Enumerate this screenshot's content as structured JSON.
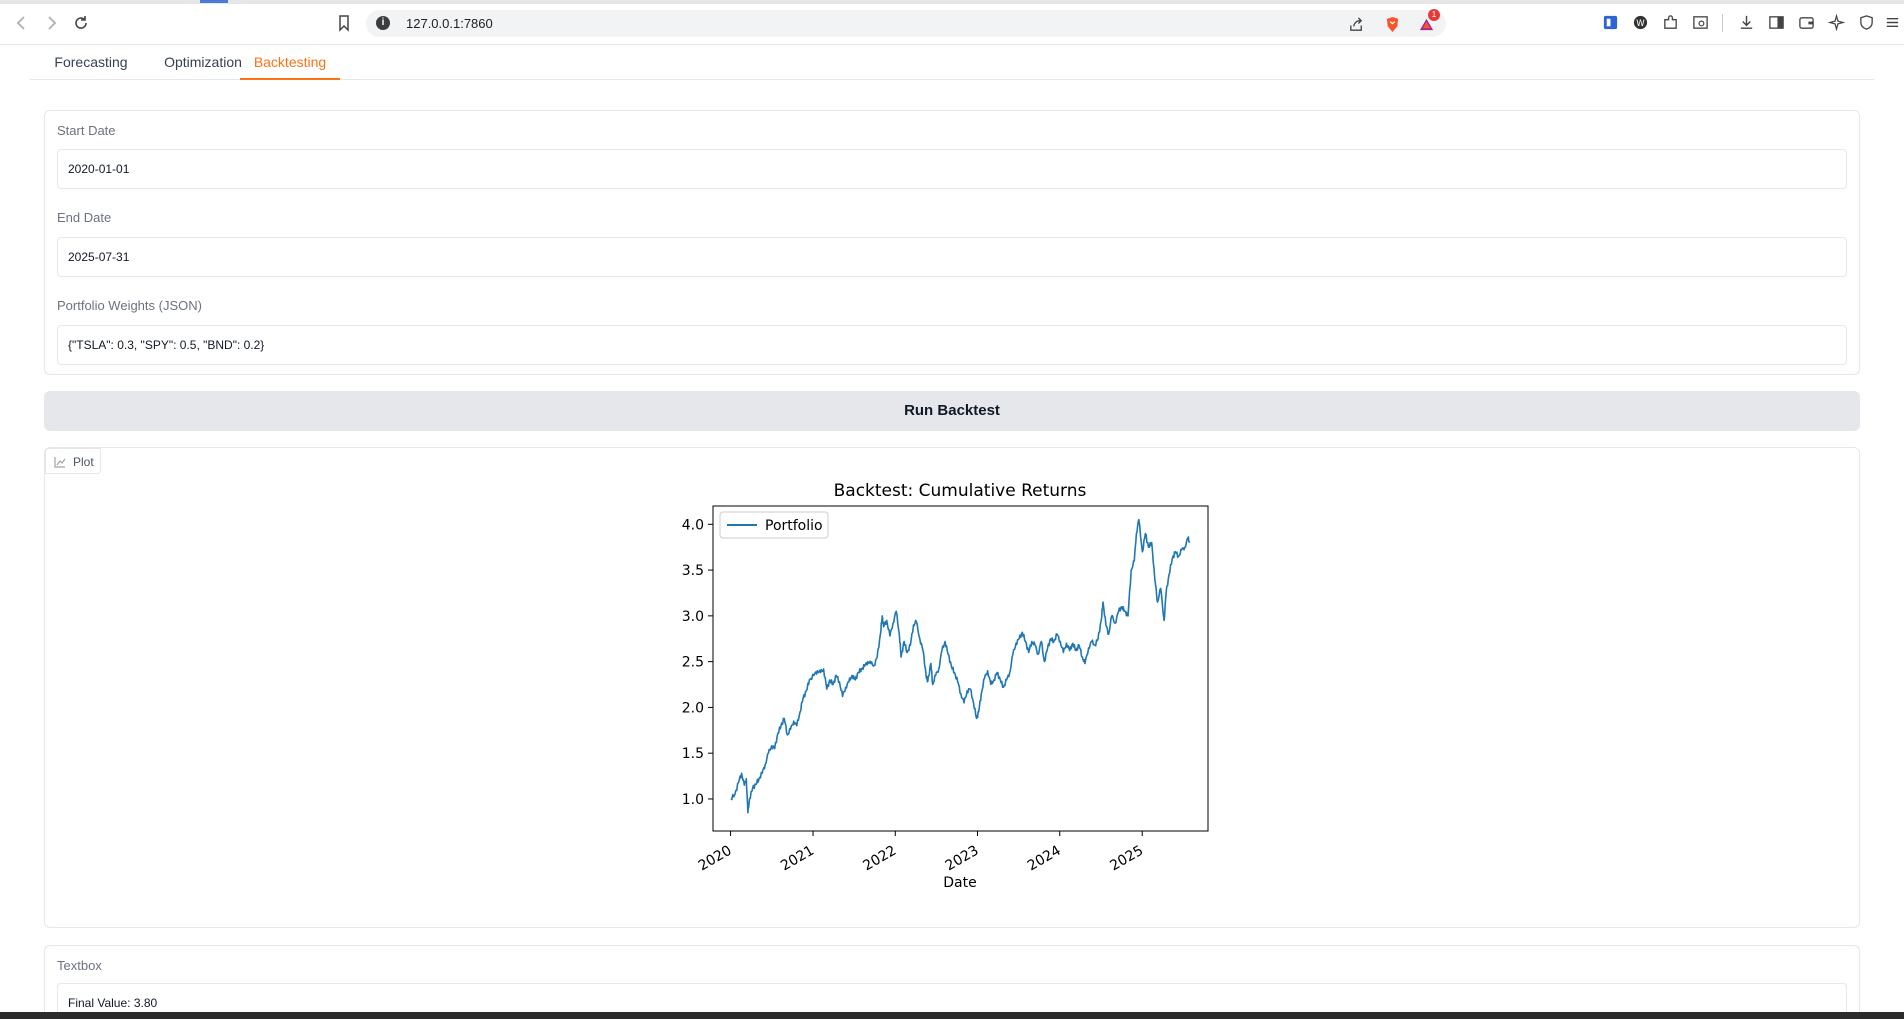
{
  "browser": {
    "url": "127.0.0.1:7860",
    "notification_count": "1"
  },
  "tabs": [
    {
      "label": "Forecasting",
      "active": false
    },
    {
      "label": "Optimization",
      "active": false
    },
    {
      "label": "Backtesting",
      "active": true
    }
  ],
  "form": {
    "start_date": {
      "label": "Start Date",
      "value": "2020-01-01"
    },
    "end_date": {
      "label": "End Date",
      "value": "2025-07-31"
    },
    "weights": {
      "label": "Portfolio Weights (JSON)",
      "value": "{\"TSLA\": 0.3, \"SPY\": 0.5, \"BND\": 0.2}"
    }
  },
  "run_button": {
    "label": "Run Backtest"
  },
  "plot": {
    "badge_label": "Plot"
  },
  "textbox": {
    "label": "Textbox",
    "value": "Final Value: 3.80"
  },
  "colors": {
    "accent": "#f97316",
    "line": "#1f77b4"
  },
  "chart_data": {
    "type": "line",
    "title": "Backtest: Cumulative Returns",
    "xlabel": "Date",
    "ylabel": "",
    "xlim": [
      "2019-10-15",
      "2025-10-20"
    ],
    "ylim": [
      0.65,
      4.2
    ],
    "x_ticks": [
      "2020",
      "2021",
      "2022",
      "2023",
      "2024",
      "2025"
    ],
    "y_ticks": [
      "1.0",
      "1.5",
      "2.0",
      "2.5",
      "3.0",
      "3.5",
      "4.0"
    ],
    "legend": "upper-left",
    "grid": false,
    "series": [
      {
        "name": "Portfolio",
        "color": "#1f77b4",
        "points": [
          [
            "2020-01-02",
            1.0
          ],
          [
            "2020-01-20",
            1.05
          ],
          [
            "2020-02-05",
            1.18
          ],
          [
            "2020-02-19",
            1.28
          ],
          [
            "2020-03-02",
            1.15
          ],
          [
            "2020-03-11",
            1.22
          ],
          [
            "2020-03-18",
            0.85
          ],
          [
            "2020-03-25",
            1.0
          ],
          [
            "2020-04-08",
            1.12
          ],
          [
            "2020-04-22",
            1.16
          ],
          [
            "2020-05-06",
            1.22
          ],
          [
            "2020-05-20",
            1.28
          ],
          [
            "2020-06-03",
            1.38
          ],
          [
            "2020-06-17",
            1.5
          ],
          [
            "2020-07-01",
            1.58
          ],
          [
            "2020-07-15",
            1.55
          ],
          [
            "2020-07-29",
            1.72
          ],
          [
            "2020-08-12",
            1.8
          ],
          [
            "2020-08-26",
            1.88
          ],
          [
            "2020-09-09",
            1.7
          ],
          [
            "2020-09-23",
            1.76
          ],
          [
            "2020-10-07",
            1.85
          ],
          [
            "2020-10-21",
            1.8
          ],
          [
            "2020-11-04",
            1.95
          ],
          [
            "2020-11-18",
            2.1
          ],
          [
            "2020-12-02",
            2.18
          ],
          [
            "2020-12-16",
            2.3
          ],
          [
            "2021-01-05",
            2.35
          ],
          [
            "2021-01-20",
            2.4
          ],
          [
            "2021-02-03",
            2.38
          ],
          [
            "2021-02-17",
            2.42
          ],
          [
            "2021-03-03",
            2.2
          ],
          [
            "2021-03-17",
            2.3
          ],
          [
            "2021-03-31",
            2.25
          ],
          [
            "2021-04-14",
            2.35
          ],
          [
            "2021-04-28",
            2.28
          ],
          [
            "2021-05-12",
            2.12
          ],
          [
            "2021-05-26",
            2.22
          ],
          [
            "2021-06-09",
            2.28
          ],
          [
            "2021-06-23",
            2.35
          ],
          [
            "2021-07-07",
            2.3
          ],
          [
            "2021-07-21",
            2.38
          ],
          [
            "2021-08-04",
            2.42
          ],
          [
            "2021-08-18",
            2.45
          ],
          [
            "2021-09-01",
            2.5
          ],
          [
            "2021-09-15",
            2.48
          ],
          [
            "2021-09-29",
            2.46
          ],
          [
            "2021-10-13",
            2.55
          ],
          [
            "2021-10-27",
            2.8
          ],
          [
            "2021-11-04",
            3.0
          ],
          [
            "2021-11-10",
            2.88
          ],
          [
            "2021-11-24",
            2.95
          ],
          [
            "2021-12-08",
            2.78
          ],
          [
            "2021-12-22",
            2.92
          ],
          [
            "2022-01-05",
            3.05
          ],
          [
            "2022-01-19",
            2.8
          ],
          [
            "2022-01-27",
            2.55
          ],
          [
            "2022-02-09",
            2.72
          ],
          [
            "2022-02-23",
            2.6
          ],
          [
            "2022-03-09",
            2.68
          ],
          [
            "2022-03-23",
            2.9
          ],
          [
            "2022-04-04",
            2.94
          ],
          [
            "2022-04-20",
            2.75
          ],
          [
            "2022-05-04",
            2.62
          ],
          [
            "2022-05-18",
            2.35
          ],
          [
            "2022-05-25",
            2.28
          ],
          [
            "2022-06-08",
            2.48
          ],
          [
            "2022-06-16",
            2.25
          ],
          [
            "2022-06-29",
            2.35
          ],
          [
            "2022-07-13",
            2.42
          ],
          [
            "2022-07-27",
            2.62
          ],
          [
            "2022-08-10",
            2.72
          ],
          [
            "2022-08-24",
            2.58
          ],
          [
            "2022-09-07",
            2.45
          ],
          [
            "2022-09-21",
            2.38
          ],
          [
            "2022-10-05",
            2.28
          ],
          [
            "2022-10-19",
            2.15
          ],
          [
            "2022-11-02",
            2.05
          ],
          [
            "2022-11-16",
            2.18
          ],
          [
            "2022-11-30",
            2.2
          ],
          [
            "2022-12-14",
            2.05
          ],
          [
            "2022-12-28",
            1.88
          ],
          [
            "2023-01-06",
            1.95
          ],
          [
            "2023-01-18",
            2.15
          ],
          [
            "2023-02-01",
            2.32
          ],
          [
            "2023-02-15",
            2.4
          ],
          [
            "2023-03-01",
            2.25
          ],
          [
            "2023-03-15",
            2.3
          ],
          [
            "2023-03-29",
            2.38
          ],
          [
            "2023-04-12",
            2.3
          ],
          [
            "2023-04-26",
            2.22
          ],
          [
            "2023-05-10",
            2.3
          ],
          [
            "2023-05-24",
            2.38
          ],
          [
            "2023-06-07",
            2.58
          ],
          [
            "2023-06-21",
            2.7
          ],
          [
            "2023-07-05",
            2.75
          ],
          [
            "2023-07-19",
            2.82
          ],
          [
            "2023-08-02",
            2.72
          ],
          [
            "2023-08-16",
            2.6
          ],
          [
            "2023-08-30",
            2.72
          ],
          [
            "2023-09-13",
            2.68
          ],
          [
            "2023-09-27",
            2.58
          ],
          [
            "2023-10-11",
            2.72
          ],
          [
            "2023-10-25",
            2.5
          ],
          [
            "2023-11-08",
            2.65
          ],
          [
            "2023-11-22",
            2.75
          ],
          [
            "2023-12-06",
            2.72
          ],
          [
            "2023-12-20",
            2.8
          ],
          [
            "2024-01-03",
            2.72
          ],
          [
            "2024-01-17",
            2.6
          ],
          [
            "2024-01-31",
            2.7
          ],
          [
            "2024-02-14",
            2.62
          ],
          [
            "2024-02-28",
            2.7
          ],
          [
            "2024-03-13",
            2.62
          ],
          [
            "2024-03-27",
            2.68
          ],
          [
            "2024-04-10",
            2.55
          ],
          [
            "2024-04-22",
            2.48
          ],
          [
            "2024-05-08",
            2.65
          ],
          [
            "2024-05-22",
            2.72
          ],
          [
            "2024-06-05",
            2.68
          ],
          [
            "2024-06-19",
            2.75
          ],
          [
            "2024-07-03",
            2.95
          ],
          [
            "2024-07-11",
            3.15
          ],
          [
            "2024-07-24",
            2.9
          ],
          [
            "2024-08-05",
            2.8
          ],
          [
            "2024-08-19",
            3.0
          ],
          [
            "2024-09-03",
            2.92
          ],
          [
            "2024-09-18",
            3.05
          ],
          [
            "2024-10-02",
            3.1
          ],
          [
            "2024-10-16",
            3.05
          ],
          [
            "2024-10-30",
            3.0
          ],
          [
            "2024-11-13",
            3.5
          ],
          [
            "2024-11-27",
            3.6
          ],
          [
            "2024-12-06",
            3.9
          ],
          [
            "2024-12-17",
            4.05
          ],
          [
            "2025-01-02",
            3.7
          ],
          [
            "2025-01-15",
            3.9
          ],
          [
            "2025-01-29",
            3.75
          ],
          [
            "2025-02-12",
            3.8
          ],
          [
            "2025-02-26",
            3.4
          ],
          [
            "2025-03-10",
            3.15
          ],
          [
            "2025-03-24",
            3.3
          ],
          [
            "2025-04-08",
            2.95
          ],
          [
            "2025-04-17",
            3.25
          ],
          [
            "2025-04-30",
            3.45
          ],
          [
            "2025-05-14",
            3.62
          ],
          [
            "2025-05-28",
            3.7
          ],
          [
            "2025-06-11",
            3.65
          ],
          [
            "2025-06-25",
            3.72
          ],
          [
            "2025-07-09",
            3.75
          ],
          [
            "2025-07-23",
            3.85
          ],
          [
            "2025-07-31",
            3.8
          ]
        ]
      }
    ]
  }
}
